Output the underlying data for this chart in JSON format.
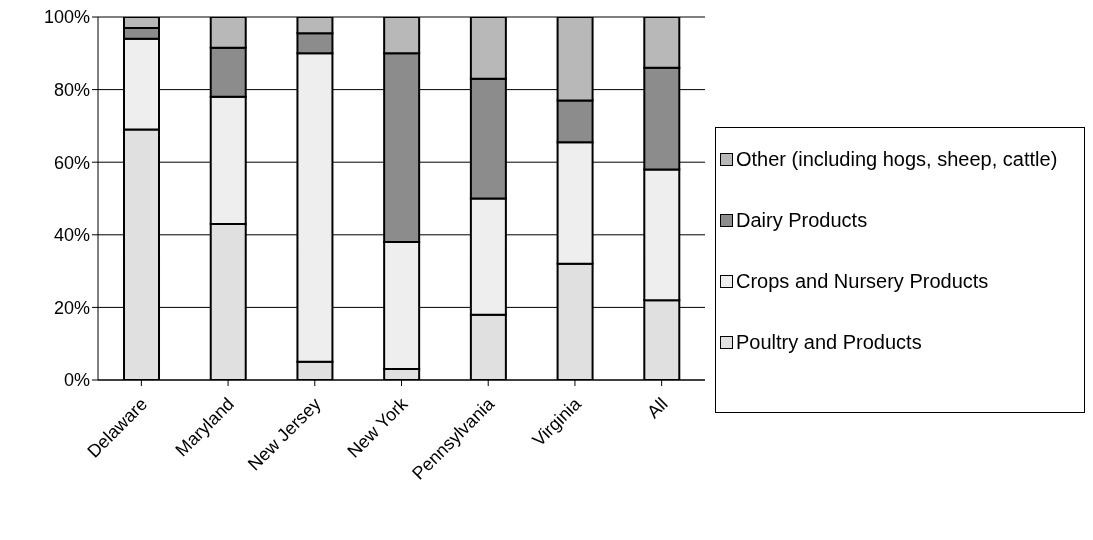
{
  "chart_data": {
    "type": "bar",
    "stacked": true,
    "categories": [
      "Delaware",
      "Maryland",
      "New Jersey",
      "New York",
      "Pennsylvania",
      "Virginia",
      "All"
    ],
    "series": [
      {
        "name": "Poultry and Products",
        "color": "#e0e0e0",
        "values": [
          69,
          43,
          5,
          3,
          18,
          32,
          22
        ]
      },
      {
        "name": "Crops and Nursery Products",
        "color": "#eeeeee",
        "values": [
          25,
          35,
          85,
          35,
          32,
          33.5,
          36
        ]
      },
      {
        "name": "Dairy Products",
        "color": "#8c8c8c",
        "values": [
          3,
          13.5,
          5.5,
          52,
          33,
          11.5,
          28
        ]
      },
      {
        "name": "Other (including hogs, sheep, cattle)",
        "color": "#b8b8b8",
        "values": [
          3,
          8.5,
          4.5,
          10,
          17,
          23,
          14
        ]
      }
    ],
    "ylim": [
      0,
      100
    ],
    "yticks": [
      {
        "value": 0,
        "label": "0%"
      },
      {
        "value": 20,
        "label": "20%"
      },
      {
        "value": 40,
        "label": "40%"
      },
      {
        "value": 60,
        "label": "60%"
      },
      {
        "value": 80,
        "label": "80%"
      },
      {
        "value": 100,
        "label": "100%"
      }
    ],
    "grid": "y",
    "legend": "right"
  }
}
